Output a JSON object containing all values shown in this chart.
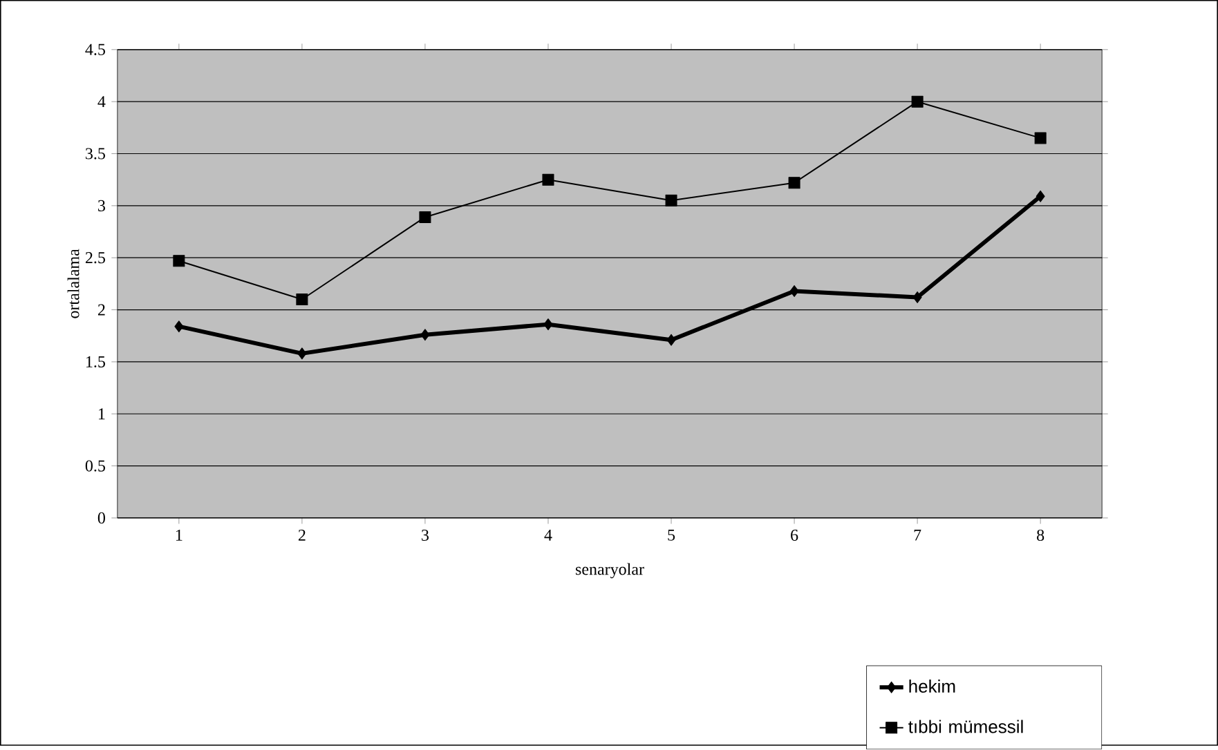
{
  "chart_data": {
    "type": "line",
    "xlabel": "senaryolar",
    "ylabel": "ortalalama",
    "categories": [
      "1",
      "2",
      "3",
      "4",
      "5",
      "6",
      "7",
      "8"
    ],
    "series": [
      {
        "name": "hekim",
        "color": "#000000",
        "marker": "diamond",
        "values": [
          1.84,
          1.58,
          1.76,
          1.86,
          1.71,
          2.18,
          2.12,
          3.09
        ]
      },
      {
        "name": "tıbbi mümessil",
        "color": "#000000",
        "marker": "square",
        "values": [
          2.47,
          2.1,
          2.89,
          3.25,
          3.05,
          3.22,
          4.0,
          3.65
        ]
      }
    ],
    "ylim": [
      0,
      4.5
    ],
    "yticks": [
      0,
      0.5,
      1,
      1.5,
      2,
      2.5,
      3,
      3.5,
      4,
      4.5
    ],
    "grid": "y",
    "legend": "bottom right",
    "line_style": "solid"
  }
}
